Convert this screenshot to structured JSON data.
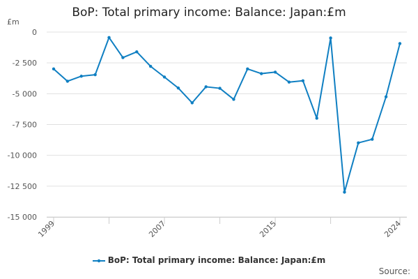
{
  "chart_data": {
    "type": "line",
    "title": "BoP: Total primary income: Balance: Japan:£m",
    "ylabel": "£m",
    "xlabel": "",
    "ylim": [
      -15000,
      0
    ],
    "yticks": [
      0,
      -2500,
      -5000,
      -7500,
      -10000,
      -12500,
      -15000
    ],
    "ytick_labels": [
      "0",
      "-2 500",
      "-5 000",
      "-7 500",
      "-10 000",
      "-12 500",
      "-15 000"
    ],
    "xtick_labels": [
      "1999",
      "2007",
      "2015",
      "2024"
    ],
    "xtick_years": [
      1999,
      2007,
      2015,
      2024
    ],
    "grid": true,
    "legend_position": "bottom",
    "color": "#0f7fc2",
    "series": [
      {
        "name": "BoP: Total primary income: Balance: Japan:£m",
        "x": [
          1999,
          2000,
          2001,
          2002,
          2003,
          2004,
          2005,
          2006,
          2007,
          2008,
          2009,
          2010,
          2011,
          2012,
          2013,
          2014,
          2015,
          2016,
          2017,
          2018,
          2019,
          2020,
          2021,
          2022,
          2023,
          2024
        ],
        "values": [
          -2990,
          -3990,
          -3580,
          -3460,
          -440,
          -2070,
          -1600,
          -2780,
          -3650,
          -4540,
          -5740,
          -4440,
          -4560,
          -5460,
          -2990,
          -3370,
          -3250,
          -4060,
          -3950,
          -6990,
          -480,
          -12990,
          -8990,
          -8700,
          -5250,
          -930
        ]
      }
    ]
  },
  "source_label": "Source:"
}
